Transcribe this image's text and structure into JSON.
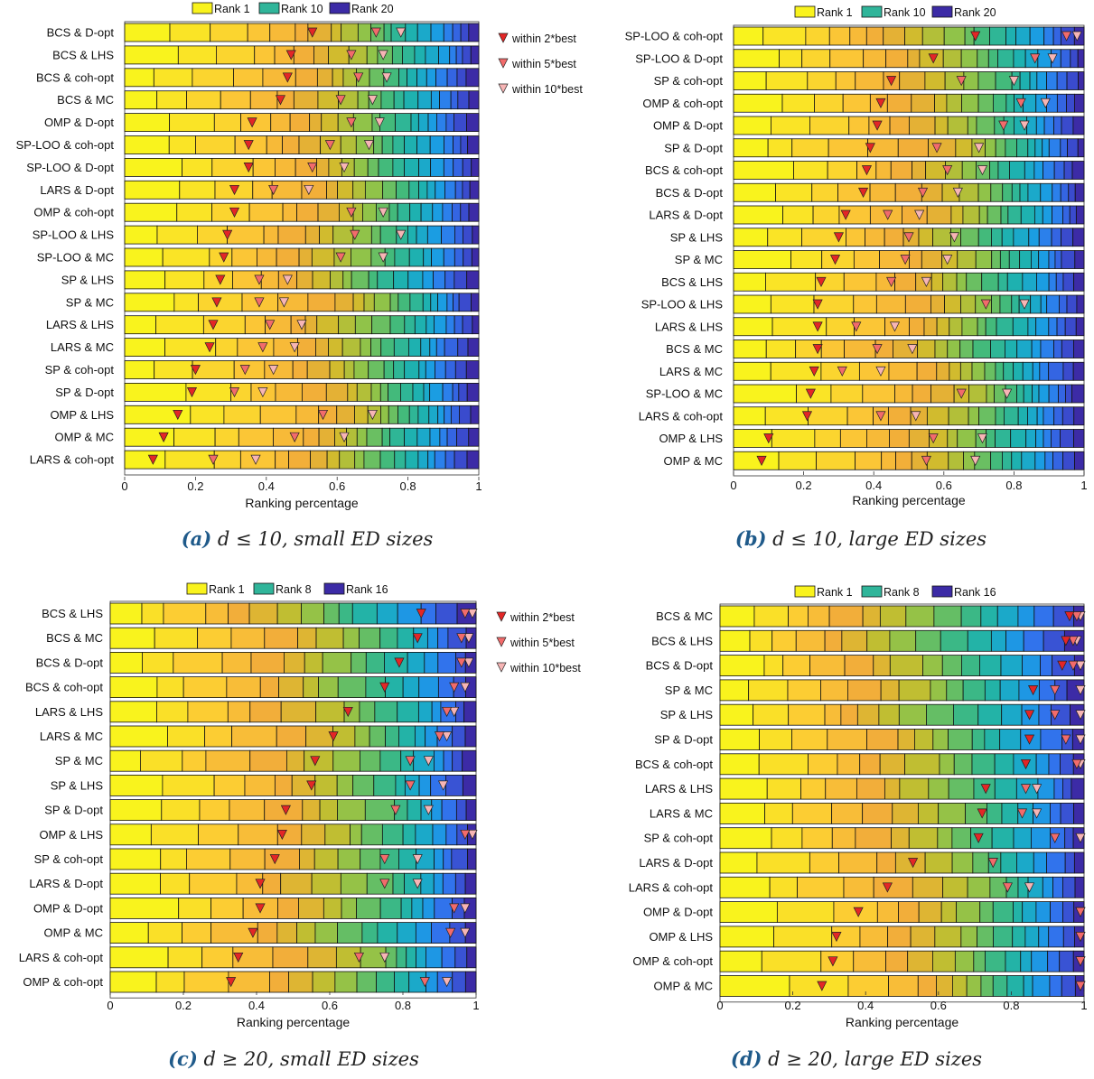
{
  "colors": {
    "marker_2best": "#e32626",
    "marker_5best": "#f26b6b",
    "marker_10best": "#f7b5b5",
    "legend_rank1": "#f9f31d",
    "legend_rank_mid": "#30b59a",
    "legend_rank_last": "#3c2ba6"
  },
  "markers_legend": [
    "within 2*best",
    "within 5*best",
    "within 10*best"
  ],
  "xticks": [
    "0",
    "0.2",
    "0.4",
    "0.6",
    "0.8",
    "1"
  ],
  "chart_data": [
    {
      "type": "bar",
      "orientation": "horizontal-stacked",
      "xlabel": "Ranking percentage",
      "xlim": [
        0,
        1
      ],
      "legend": [
        "Rank 1",
        "Rank 10",
        "Rank 20"
      ],
      "n_ranks": 20,
      "caption": {
        "letter": "(a)",
        "math": "d ≤ 10",
        "text": ", small ED sizes"
      },
      "categories": [
        "BCS & D-opt",
        "BCS & LHS",
        "BCS & coh-opt",
        "BCS & MC",
        "OMP & D-opt",
        "SP-LOO & coh-opt",
        "SP-LOO & D-opt",
        "LARS & D-opt",
        "OMP & coh-opt",
        "SP-LOO & LHS",
        "SP-LOO & MC",
        "SP & LHS",
        "SP & MC",
        "LARS & LHS",
        "LARS & MC",
        "SP & coh-opt",
        "SP & D-opt",
        "OMP & LHS",
        "OMP & MC",
        "LARS & coh-opt"
      ],
      "within_2best": [
        0.53,
        0.47,
        0.46,
        0.44,
        0.36,
        0.35,
        0.35,
        0.31,
        0.31,
        0.29,
        0.28,
        0.27,
        0.26,
        0.25,
        0.24,
        0.2,
        0.19,
        0.15,
        0.11,
        0.08
      ],
      "within_5best": [
        0.71,
        0.64,
        0.66,
        0.61,
        0.64,
        0.58,
        0.53,
        0.42,
        0.64,
        0.65,
        0.61,
        0.38,
        0.38,
        0.41,
        0.39,
        0.34,
        0.31,
        0.56,
        0.48,
        0.25
      ],
      "within_10best": [
        0.78,
        0.73,
        0.74,
        0.7,
        0.72,
        0.69,
        0.62,
        0.52,
        0.73,
        0.78,
        0.73,
        0.46,
        0.45,
        0.5,
        0.48,
        0.42,
        0.39,
        0.7,
        0.62,
        0.37
      ]
    },
    {
      "type": "bar",
      "orientation": "horizontal-stacked",
      "xlabel": "Ranking percentage",
      "xlim": [
        0,
        1
      ],
      "legend": [
        "Rank 1",
        "Rank 10",
        "Rank 20"
      ],
      "n_ranks": 20,
      "caption": {
        "letter": "(b)",
        "math": "d ≤ 10",
        "text": ", large ED sizes"
      },
      "categories": [
        "SP-LOO & coh-opt",
        "SP-LOO & D-opt",
        "SP & coh-opt",
        "OMP & coh-opt",
        "OMP & D-opt",
        "SP & D-opt",
        "BCS & coh-opt",
        "BCS & D-opt",
        "LARS & D-opt",
        "SP & LHS",
        "SP & MC",
        "BCS & LHS",
        "SP-LOO & LHS",
        "LARS & LHS",
        "BCS & MC",
        "LARS & MC",
        "SP-LOO & MC",
        "LARS & coh-opt",
        "OMP & LHS",
        "OMP & MC"
      ],
      "within_2best": [
        0.69,
        0.57,
        0.45,
        0.42,
        0.41,
        0.39,
        0.38,
        0.37,
        0.32,
        0.3,
        0.29,
        0.25,
        0.24,
        0.24,
        0.24,
        0.23,
        0.22,
        0.21,
        0.1,
        0.08
      ],
      "within_5best": [
        0.95,
        0.86,
        0.65,
        0.82,
        0.77,
        0.58,
        0.61,
        0.54,
        0.44,
        0.5,
        0.49,
        0.45,
        0.72,
        0.35,
        0.41,
        0.31,
        0.65,
        0.42,
        0.57,
        0.55
      ],
      "within_10best": [
        0.98,
        0.91,
        0.8,
        0.89,
        0.83,
        0.7,
        0.71,
        0.64,
        0.53,
        0.63,
        0.61,
        0.55,
        0.83,
        0.46,
        0.51,
        0.42,
        0.78,
        0.52,
        0.71,
        0.69
      ]
    },
    {
      "type": "bar",
      "orientation": "horizontal-stacked",
      "xlabel": "Ranking percentage",
      "xlim": [
        0,
        1
      ],
      "legend": [
        "Rank 1",
        "Rank 8",
        "Rank 16"
      ],
      "n_ranks": 16,
      "caption": {
        "letter": "(c)",
        "math": "d ≥ 20",
        "text": ", small ED sizes"
      },
      "categories": [
        "BCS & LHS",
        "BCS & MC",
        "BCS & D-opt",
        "BCS & coh-opt",
        "LARS & LHS",
        "LARS & MC",
        "SP & MC",
        "SP & LHS",
        "SP & D-opt",
        "OMP & LHS",
        "SP & coh-opt",
        "LARS & D-opt",
        "OMP & D-opt",
        "OMP & MC",
        "LARS & coh-opt",
        "OMP & coh-opt"
      ],
      "within_2best": [
        0.85,
        0.84,
        0.79,
        0.75,
        0.65,
        0.61,
        0.56,
        0.55,
        0.48,
        0.47,
        0.45,
        0.41,
        0.41,
        0.39,
        0.35,
        0.33
      ],
      "within_5best": [
        0.97,
        0.96,
        0.96,
        0.94,
        0.92,
        0.9,
        0.82,
        0.82,
        0.78,
        0.97,
        0.75,
        0.75,
        0.94,
        0.93,
        0.68,
        0.86
      ],
      "within_10best": [
        0.99,
        0.98,
        0.98,
        0.97,
        0.94,
        0.92,
        0.87,
        0.91,
        0.87,
        0.99,
        0.84,
        0.84,
        0.97,
        0.97,
        0.75,
        0.92
      ]
    },
    {
      "type": "bar",
      "orientation": "horizontal-stacked",
      "xlabel": "Ranking percentage",
      "xlim": [
        0,
        1
      ],
      "legend": [
        "Rank 1",
        "Rank 8",
        "Rank 16"
      ],
      "n_ranks": 16,
      "caption": {
        "letter": "(d)",
        "math": "d ≥ 20",
        "text": ", large ED sizes"
      },
      "categories": [
        "BCS & MC",
        "BCS & LHS",
        "BCS & D-opt",
        "SP & MC",
        "SP & LHS",
        "SP & D-opt",
        "BCS & coh-opt",
        "LARS & LHS",
        "LARS & MC",
        "SP & coh-opt",
        "LARS & D-opt",
        "LARS & coh-opt",
        "OMP & D-opt",
        "OMP & LHS",
        "OMP & coh-opt",
        "OMP & MC"
      ],
      "within_2best": [
        0.96,
        0.95,
        0.94,
        0.86,
        0.85,
        0.85,
        0.84,
        0.73,
        0.72,
        0.71,
        0.53,
        0.46,
        0.38,
        0.32,
        0.31,
        0.28
      ],
      "within_5best": [
        0.98,
        0.97,
        0.97,
        0.92,
        0.92,
        0.95,
        0.98,
        0.84,
        0.83,
        0.92,
        0.75,
        0.79,
        0.99,
        0.99,
        0.99,
        0.99
      ],
      "within_10best": [
        0.99,
        0.98,
        0.99,
        0.99,
        0.99,
        0.99,
        0.99,
        0.87,
        0.87,
        0.99,
        0.75,
        0.85,
        0.99,
        0.99,
        0.99,
        0.99
      ]
    }
  ]
}
